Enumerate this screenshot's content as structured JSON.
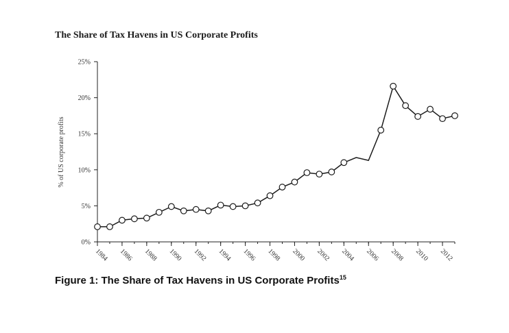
{
  "chart_data": {
    "type": "line",
    "title": "The Share of Tax Havens in US Corporate Profits",
    "ylabel": "% of US corporate profits",
    "xlabel": "",
    "ylim": [
      0,
      25
    ],
    "xlim": [
      1984,
      2013
    ],
    "y_ticks": [
      "0%",
      "5%",
      "10%",
      "15%",
      "20%",
      "25%"
    ],
    "x_ticks": [
      "1984",
      "1986",
      "1988",
      "1990",
      "1992",
      "1994",
      "1996",
      "1998",
      "2000",
      "2002",
      "2004",
      "2006",
      "2008",
      "2010",
      "2012"
    ],
    "x": [
      1984,
      1985,
      1986,
      1987,
      1988,
      1989,
      1990,
      1991,
      1992,
      1993,
      1994,
      1995,
      1996,
      1997,
      1998,
      1999,
      2000,
      2001,
      2002,
      2003,
      2004,
      2005,
      2006,
      2007,
      2008,
      2009,
      2010,
      2011,
      2012,
      2013
    ],
    "values": [
      2.1,
      2.1,
      3.0,
      3.2,
      3.3,
      4.1,
      4.9,
      4.3,
      4.5,
      4.3,
      5.1,
      4.9,
      5.0,
      5.4,
      6.4,
      7.6,
      8.3,
      9.6,
      9.4,
      9.7,
      11.0,
      11.7,
      11.3,
      15.5,
      21.6,
      18.9,
      17.4,
      18.4,
      17.1,
      17.5
    ],
    "markers": [
      true,
      true,
      true,
      true,
      true,
      true,
      true,
      true,
      true,
      true,
      true,
      true,
      true,
      true,
      true,
      true,
      true,
      true,
      true,
      true,
      true,
      false,
      false,
      true,
      true,
      true,
      true,
      true,
      true,
      true
    ],
    "grid": false,
    "line_color": "#1a1a1a",
    "marker_fill": "#ffffff"
  },
  "caption": {
    "text": "Figure 1: The Share of Tax Havens in US Corporate Profits",
    "footnote": "15"
  }
}
